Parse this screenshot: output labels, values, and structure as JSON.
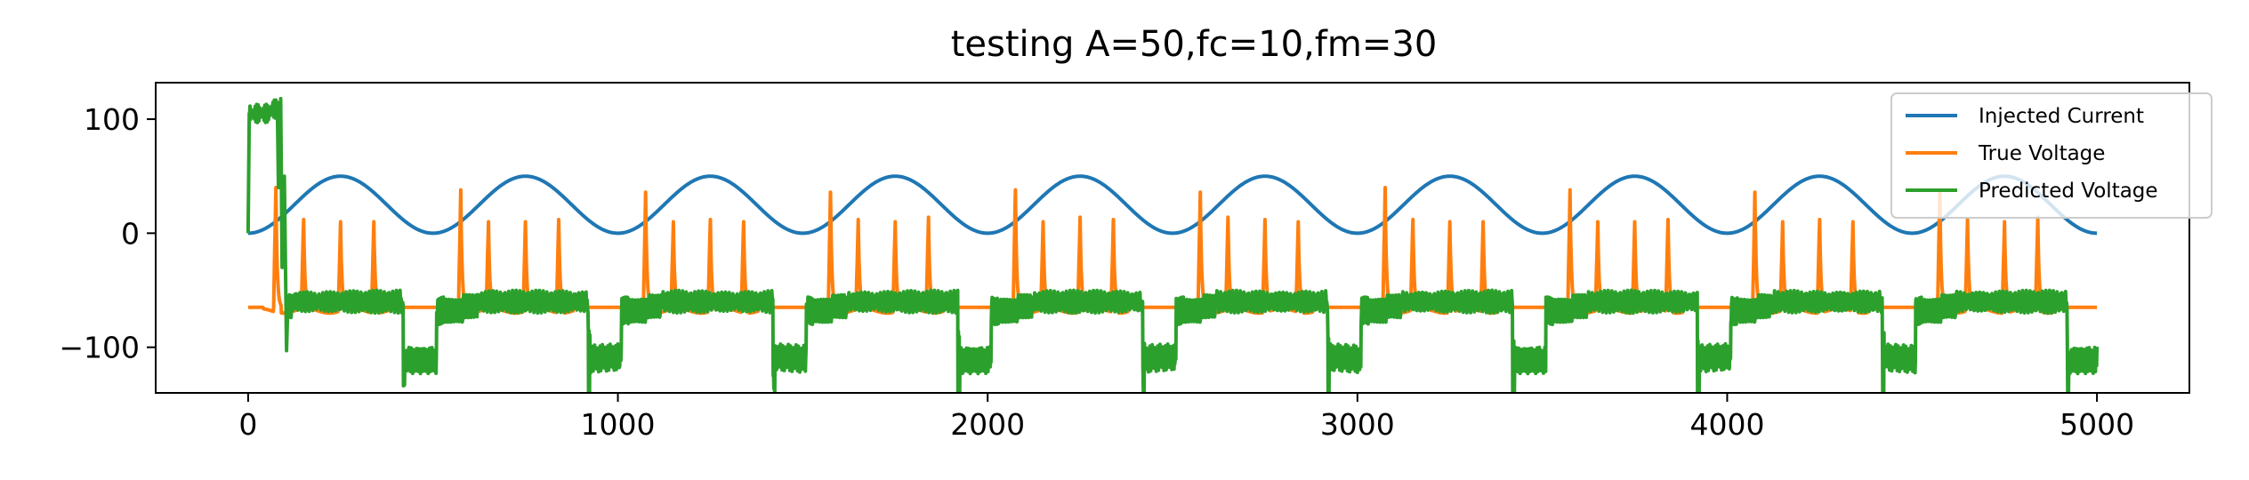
{
  "chart_data": {
    "type": "line",
    "title": "testing A=50,fc=10,fm=30",
    "xlabel": "",
    "ylabel": "",
    "xlim": [
      -250,
      5250
    ],
    "ylim": [
      -140,
      132
    ],
    "xticks": [
      0,
      1000,
      2000,
      3000,
      4000,
      5000
    ],
    "xtick_labels": [
      "0",
      "1000",
      "2000",
      "3000",
      "4000",
      "5000"
    ],
    "yticks": [
      100,
      0,
      -100
    ],
    "ytick_labels": [
      "100",
      "0",
      "−100"
    ],
    "grid": false,
    "legend_position": "top-right",
    "series": [
      {
        "name": "Injected Current",
        "color": "#1f77b4",
        "description_values": {
          "offset": 25,
          "amplitude": 25,
          "period": 500,
          "start": 0,
          "end": 5000
        }
      },
      {
        "name": "True Voltage",
        "color": "#ff7f0e",
        "baseline": -65,
        "spike_peaks_sample": [
          40,
          38,
          36,
          36,
          38,
          36
        ],
        "burst_period": 500,
        "burst_spike_offsets": [
          60,
          150,
          250,
          340
        ]
      },
      {
        "name": "Predicted Voltage",
        "color": "#2ca02c",
        "initial_level": 105,
        "depolarized_level": -60,
        "hyperpolarized_level": -110,
        "hyperpolarized_range": [
          [
            420,
            460
          ],
          [
            920,
            960
          ]
        ]
      }
    ]
  }
}
